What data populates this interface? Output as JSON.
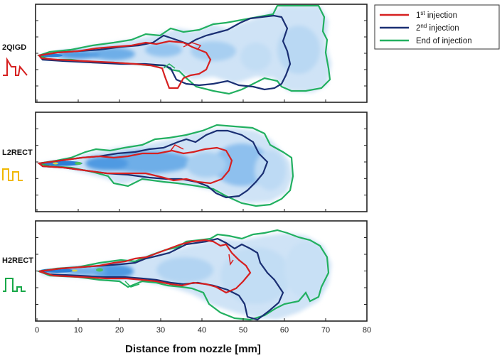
{
  "figure": {
    "panels": [
      {
        "id": "2qigd",
        "label": "2QIGD",
        "profile_color": "#d62020"
      },
      {
        "id": "l2rect",
        "label": "L2RECT",
        "profile_color": "#f0b800"
      },
      {
        "id": "h2rect",
        "label": "H2RECT",
        "profile_color": "#18a848"
      }
    ],
    "x_axis": {
      "title": "Distance from nozzle [mm]",
      "ticks": [
        "0",
        "10",
        "20",
        "30",
        "40",
        "50",
        "60",
        "70",
        "80"
      ]
    },
    "legend": {
      "items": [
        {
          "base": "1",
          "sup": "st",
          "rest": " injection",
          "color": "#d62020"
        },
        {
          "base": "2",
          "sup": "nd",
          "rest": " injection",
          "color": "#1a2f73"
        },
        {
          "base": "End of injection",
          "sup": "",
          "rest": "",
          "color": "#22b060"
        }
      ]
    }
  }
}
